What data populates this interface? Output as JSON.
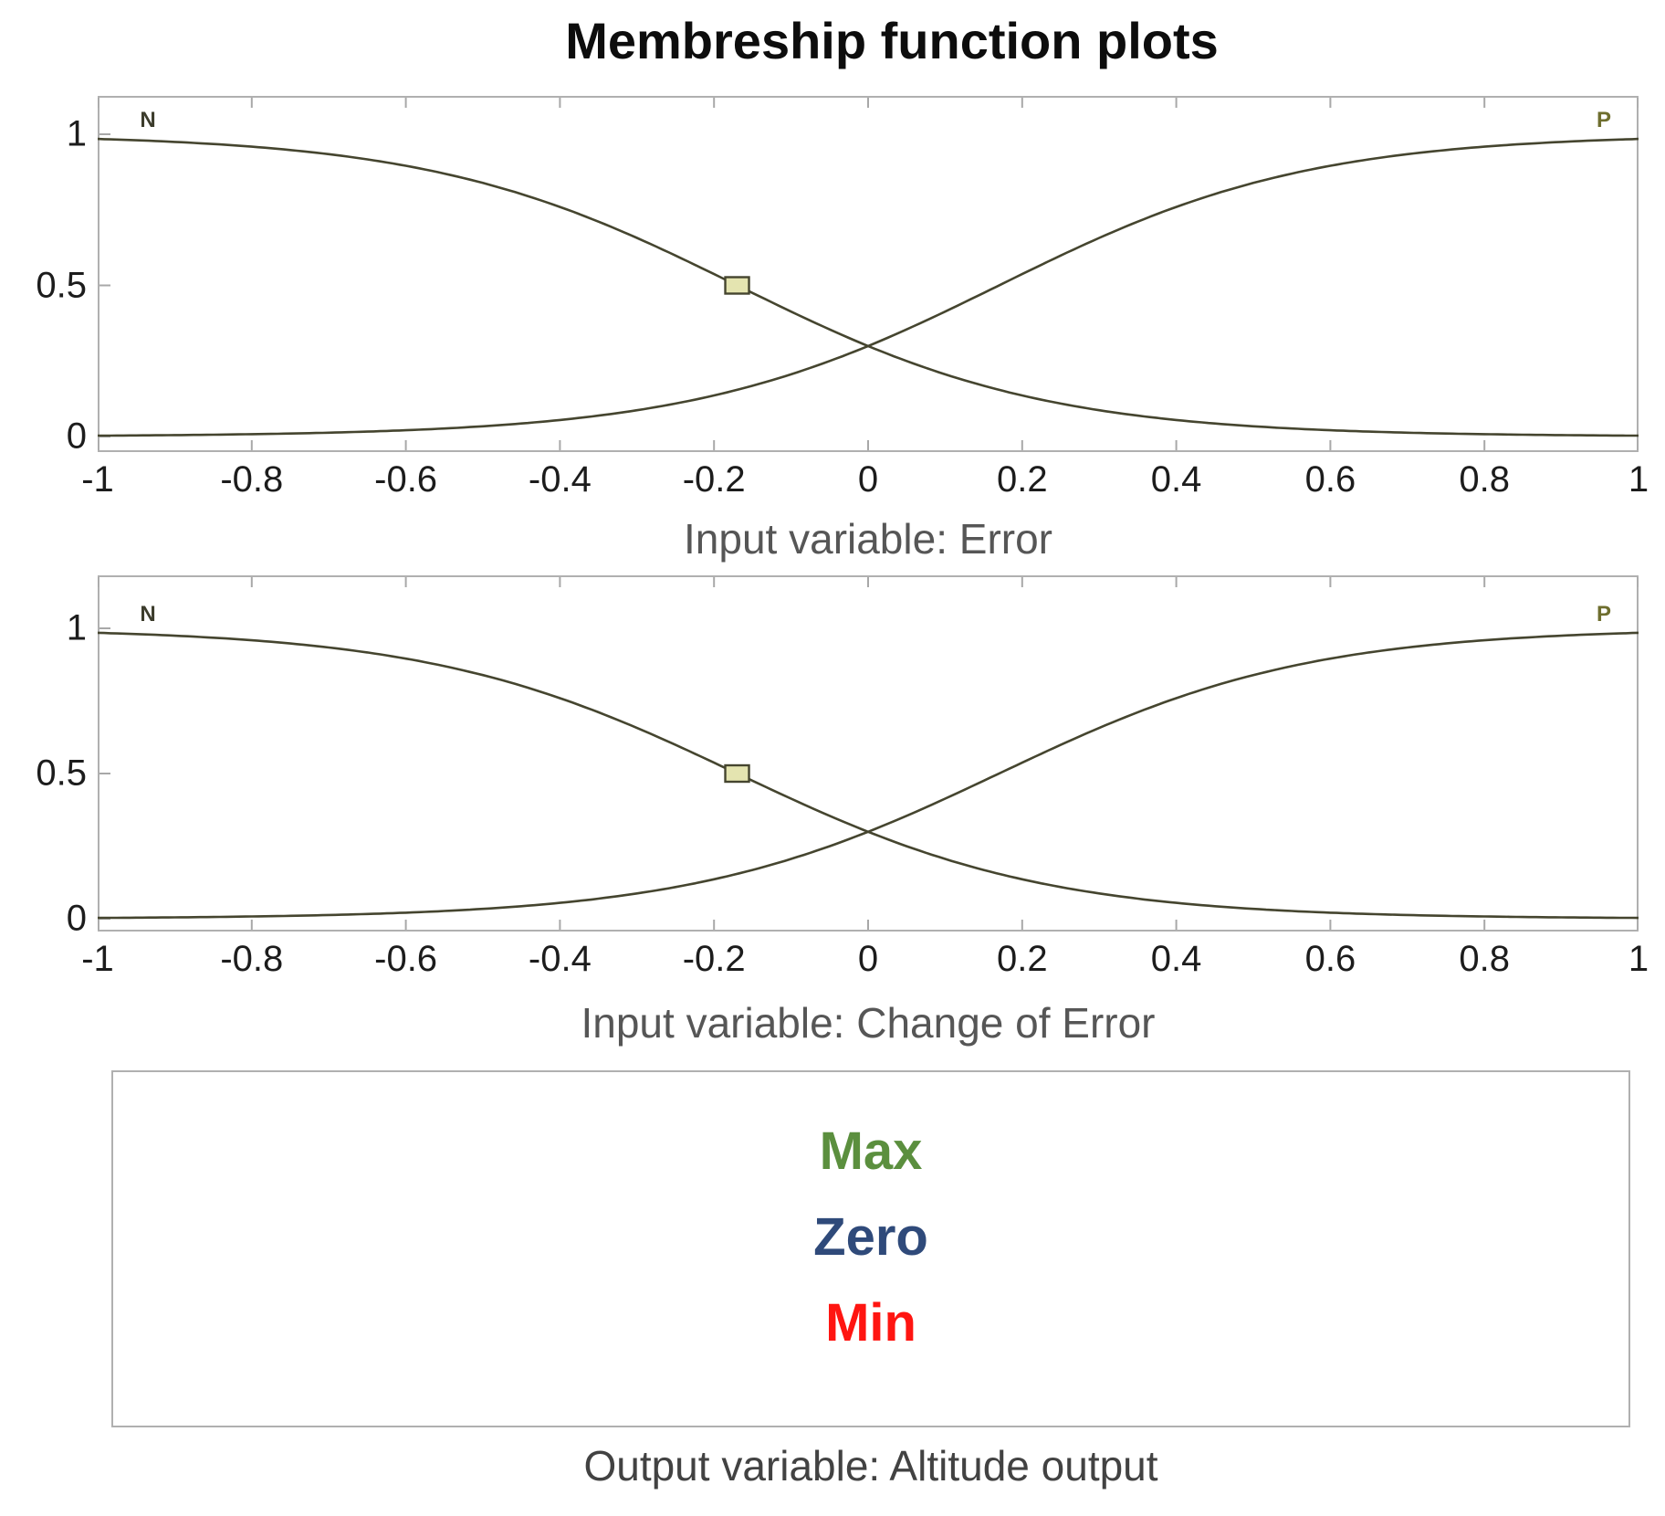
{
  "title": "Membreship function plots",
  "colors": {
    "curve": "#45452f",
    "frame": "#b0b0b0",
    "tick": "#a8a8a8",
    "tick_label": "#1c1c1c",
    "caption": "#565656",
    "marker_fill": "#e4e4b0",
    "marker_stroke": "#45452f",
    "max_green": "#5b8f3e",
    "zero_navy": "#2f4a7a",
    "min_red": "#ff1511"
  },
  "chart_data": [
    {
      "type": "line",
      "xlabel": "Input variable: Error",
      "xlim": [
        -1,
        1
      ],
      "ylim": [
        0,
        1
      ],
      "grid": false,
      "legend": "none",
      "x_tick_values": [
        -1,
        -0.8,
        -0.6,
        -0.4,
        -0.2,
        0,
        0.2,
        0.4,
        0.6,
        0.8,
        1
      ],
      "x_tick_labels": [
        "-1",
        "-0.8",
        "-0.6",
        "-0.4",
        "-0.2",
        "0",
        "0.2",
        "0.4",
        "0.6",
        "0.8",
        "1"
      ],
      "y_tick_values": [
        1,
        0.5,
        0
      ],
      "y_tick_labels": [
        "1",
        "0.5",
        "0"
      ],
      "series": [
        {
          "name": "N",
          "shape": "sigmoid",
          "slope": -5,
          "midpoint": -0.17,
          "label_color": "#3c3c2c",
          "label_anchor": "left",
          "sample_x": [
            -1,
            -0.75,
            -0.5,
            -0.25,
            0,
            0.25,
            0.5,
            0.75,
            1
          ],
          "sample_y": [
            0.98,
            0.95,
            0.84,
            0.6,
            0.3,
            0.11,
            0.03,
            0.01,
            0.003
          ]
        },
        {
          "name": "P",
          "shape": "sigmoid",
          "slope": 5,
          "midpoint": 0.17,
          "label_color": "#6e6e2e",
          "label_anchor": "right",
          "sample_x": [
            -1,
            -0.75,
            -0.5,
            -0.25,
            0,
            0.25,
            0.5,
            0.75,
            1
          ],
          "sample_y": [
            0.003,
            0.01,
            0.03,
            0.11,
            0.3,
            0.6,
            0.84,
            0.95,
            0.98
          ]
        }
      ],
      "selected_marker": {
        "series": "N",
        "x": -0.17,
        "y": 0.5
      }
    },
    {
      "type": "line",
      "xlabel": "Input variable: Change of Error",
      "xlim": [
        -1,
        1
      ],
      "ylim": [
        0,
        1
      ],
      "grid": false,
      "legend": "none",
      "x_tick_values": [
        -1,
        -0.8,
        -0.6,
        -0.4,
        -0.2,
        0,
        0.2,
        0.4,
        0.6,
        0.8,
        1
      ],
      "x_tick_labels": [
        "-1",
        "-0.8",
        "-0.6",
        "-0.4",
        "-0.2",
        "0",
        "0.2",
        "0.4",
        "0.6",
        "0.8",
        "1"
      ],
      "y_tick_values": [
        1,
        0.5,
        0
      ],
      "y_tick_labels": [
        "1",
        "0.5",
        "0"
      ],
      "series": [
        {
          "name": "N",
          "shape": "sigmoid",
          "slope": -5,
          "midpoint": -0.17,
          "label_color": "#3c3c2c",
          "label_anchor": "left",
          "sample_x": [
            -1,
            -0.75,
            -0.5,
            -0.25,
            0,
            0.25,
            0.5,
            0.75,
            1
          ],
          "sample_y": [
            0.98,
            0.95,
            0.84,
            0.6,
            0.3,
            0.11,
            0.03,
            0.01,
            0.003
          ]
        },
        {
          "name": "P",
          "shape": "sigmoid",
          "slope": 5,
          "midpoint": 0.17,
          "label_color": "#6e6e2e",
          "label_anchor": "right",
          "sample_x": [
            -1,
            -0.75,
            -0.5,
            -0.25,
            0,
            0.25,
            0.5,
            0.75,
            1
          ],
          "sample_y": [
            0.003,
            0.01,
            0.03,
            0.11,
            0.3,
            0.6,
            0.84,
            0.95,
            0.98
          ]
        }
      ],
      "selected_marker": {
        "series": "N",
        "x": -0.17,
        "y": 0.5
      }
    },
    {
      "type": "list",
      "xlabel": "Output variable: Altitude output",
      "items": [
        {
          "label": "Max",
          "color": "#5b8f3e"
        },
        {
          "label": "Zero",
          "color": "#2f4a7a"
        },
        {
          "label": "Min",
          "color": "#ff1511"
        }
      ]
    }
  ]
}
